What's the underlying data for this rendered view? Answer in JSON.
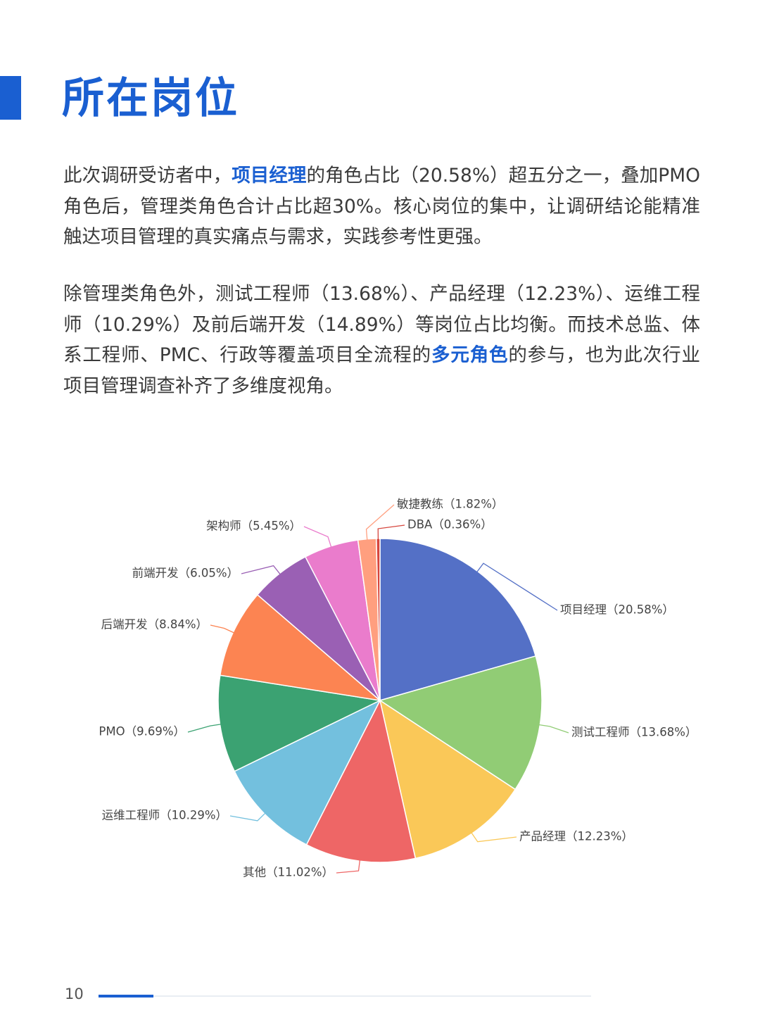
{
  "page": {
    "title": "所在岗位",
    "page_number": "10",
    "accent_color": "#1a5fd1"
  },
  "paragraphs": [
    {
      "segments": [
        {
          "text": "此次调研受访者中，",
          "highlight": false
        },
        {
          "text": "项目经理",
          "highlight": true
        },
        {
          "text": "的角色占比（20.58%）超五分之一，叠加PMO角色后，管理类角色合计占比超30%。核心岗位的集中，让调研结论能精准触达项目管理的真实痛点与需求，实践参考性更强。",
          "highlight": false
        }
      ]
    },
    {
      "segments": [
        {
          "text": "除管理类角色外，测试工程师（13.68%）、产品经理（12.23%）、运维工程师（10.29%）及前后端开发（14.89%）等岗位占比均衡。而技术总监、体系工程师、PMC、行政等覆盖项目全流程的",
          "highlight": false
        },
        {
          "text": "多元角色",
          "highlight": true
        },
        {
          "text": "的参与，也为此次行业项目管理调查补齐了多维度视角。",
          "highlight": false
        }
      ]
    }
  ],
  "chart_data": {
    "type": "pie",
    "start_angle_deg": 0,
    "direction": "clockwise",
    "slices": [
      {
        "name": "项目经理",
        "value": 20.58,
        "label": "项目经理（20.58%）",
        "color": "#5470c6"
      },
      {
        "name": "测试工程师",
        "value": 13.68,
        "label": "测试工程师（13.68%）",
        "color": "#91cc75"
      },
      {
        "name": "产品经理",
        "value": 12.23,
        "label": "产品经理（12.23%）",
        "color": "#fac858"
      },
      {
        "name": "其他",
        "value": 11.02,
        "label": "其他（11.02%）",
        "color": "#ee6666"
      },
      {
        "name": "运维工程师",
        "value": 10.29,
        "label": "运维工程师（10.29%）",
        "color": "#73c0de"
      },
      {
        "name": "PMO",
        "value": 9.69,
        "label": "PMO（9.69%）",
        "color": "#3ba272"
      },
      {
        "name": "后端开发",
        "value": 8.84,
        "label": "后端开发（8.84%）",
        "color": "#fc8452"
      },
      {
        "name": "前端开发",
        "value": 6.05,
        "label": "前端开发（6.05%）",
        "color": "#9a60b4"
      },
      {
        "name": "架构师",
        "value": 5.45,
        "label": "架构师（5.45%）",
        "color": "#ea7ccc"
      },
      {
        "name": "敏捷教练",
        "value": 1.82,
        "label": "敏捷教练（1.82%）",
        "color": "#ff9f7f"
      },
      {
        "name": "DBA",
        "value": 0.36,
        "label": "DBA（0.36%）",
        "color": "#d6453d"
      }
    ]
  }
}
